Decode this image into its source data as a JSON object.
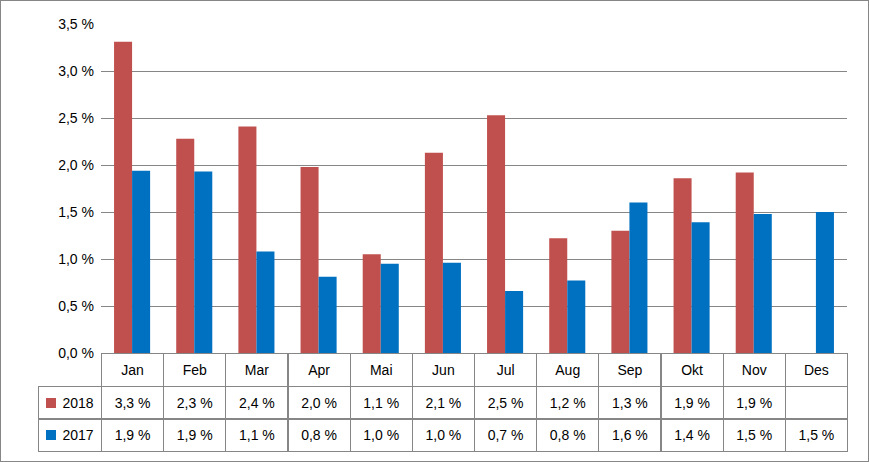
{
  "chart_data": {
    "type": "bar",
    "categories": [
      "Jan",
      "Feb",
      "Mar",
      "Apr",
      "Mai",
      "Jun",
      "Jul",
      "Aug",
      "Sep",
      "Okt",
      "Nov",
      "Des"
    ],
    "series": [
      {
        "name": "2018",
        "color": "#c0504d",
        "values": [
          3.31,
          2.28,
          2.41,
          1.98,
          1.05,
          2.13,
          2.53,
          1.22,
          1.3,
          1.86,
          1.92,
          null
        ],
        "value_labels": [
          "3,3 %",
          "2,3 %",
          "2,4 %",
          "2,0 %",
          "1,1 %",
          "2,1 %",
          "2,5 %",
          "1,2 %",
          "1,3 %",
          "1,9 %",
          "1,9 %",
          null
        ]
      },
      {
        "name": "2017",
        "color": "#0070c0",
        "values": [
          1.94,
          1.93,
          1.08,
          0.81,
          0.95,
          0.96,
          0.66,
          0.77,
          1.6,
          1.39,
          1.48,
          1.5
        ],
        "value_labels": [
          "1,9 %",
          "1,9 %",
          "1,1 %",
          "0,8 %",
          "1,0 %",
          "1,0 %",
          "0,7 %",
          "0,8 %",
          "1,6 %",
          "1,4 %",
          "1,5 %",
          "1,5 %"
        ]
      }
    ],
    "ylim": [
      0,
      3.5
    ],
    "yticks": [
      {
        "value": 0,
        "label": "0,0 %"
      },
      {
        "value": 0.5,
        "label": "0,5 %"
      },
      {
        "value": 1,
        "label": "1,0 %"
      },
      {
        "value": 1.5,
        "label": "1,5 %"
      },
      {
        "value": 2,
        "label": "2,0 %"
      },
      {
        "value": 2.5,
        "label": "2,5 %"
      },
      {
        "value": 3,
        "label": "3,0 %"
      },
      {
        "value": 3.5,
        "label": "3,5 %"
      }
    ],
    "grid": true
  }
}
